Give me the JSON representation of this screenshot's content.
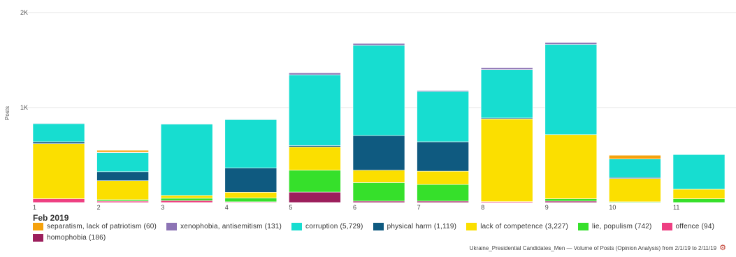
{
  "chart_data": {
    "type": "bar",
    "stacked": true,
    "ylabel": "Posts",
    "ylim": [
      0,
      2000
    ],
    "yticks": [
      {
        "value": 1000,
        "label": "1K"
      },
      {
        "value": 2000,
        "label": "2K"
      }
    ],
    "period_label": "Feb 2019",
    "categories": [
      "1",
      "2",
      "3",
      "4",
      "5",
      "6",
      "7",
      "8",
      "9",
      "10",
      "11"
    ],
    "grid": true,
    "legend_position": "bottom",
    "series": [
      {
        "name": "homophobia (186)",
        "color": "#9c1f5c",
        "values": [
          0,
          0,
          0,
          0,
          110,
          15,
          15,
          0,
          15,
          0,
          0
        ]
      },
      {
        "name": "offence (94)",
        "color": "#ee3f82",
        "values": [
          40,
          15,
          20,
          8,
          0,
          0,
          0,
          10,
          0,
          0,
          0
        ]
      },
      {
        "name": "lie, populism (742)",
        "color": "#36e02b",
        "values": [
          0,
          15,
          25,
          40,
          230,
          195,
          175,
          0,
          25,
          8,
          40
        ]
      },
      {
        "name": "lack of competence (3,227)",
        "color": "#fbdf00",
        "values": [
          580,
          200,
          30,
          60,
          245,
          130,
          140,
          870,
          675,
          245,
          100
        ]
      },
      {
        "name": "physical harm (1,119)",
        "color": "#0f5a80",
        "values": [
          20,
          95,
          0,
          255,
          15,
          365,
          310,
          10,
          0,
          10,
          0
        ]
      },
      {
        "name": "corruption (5,729)",
        "color": "#17ddd0",
        "values": [
          190,
          200,
          750,
          510,
          745,
          950,
          530,
          510,
          950,
          195,
          365
        ]
      },
      {
        "name": "xenophobia, antisemitism (131)",
        "color": "#8d74b5",
        "values": [
          5,
          5,
          5,
          5,
          20,
          20,
          10,
          20,
          20,
          0,
          0
        ]
      },
      {
        "name": "separatism, lack of patriotism (60)",
        "color": "#f5a20d",
        "values": [
          0,
          20,
          0,
          0,
          0,
          0,
          0,
          0,
          0,
          40,
          0
        ]
      }
    ]
  },
  "legend": [
    {
      "label": "separatism, lack of patriotism (60)",
      "color": "#f5a20d"
    },
    {
      "label": "xenophobia, antisemitism (131)",
      "color": "#8d74b5"
    },
    {
      "label": "corruption (5,729)",
      "color": "#17ddd0"
    },
    {
      "label": "physical harm (1,119)",
      "color": "#0f5a80"
    },
    {
      "label": "lack of competence (3,227)",
      "color": "#fbdf00"
    },
    {
      "label": "lie, populism (742)",
      "color": "#36e02b"
    },
    {
      "label": "offence (94)",
      "color": "#ee3f82"
    },
    {
      "label": "homophobia (186)",
      "color": "#9c1f5c"
    }
  ],
  "footer": {
    "text": "Ukraine_Presidential Candidates_Men — Volume of Posts (Opinion Analysis) from 2/1/19 to 2/11/19",
    "icon": "gear-icon",
    "icon_color": "#c0392b"
  }
}
